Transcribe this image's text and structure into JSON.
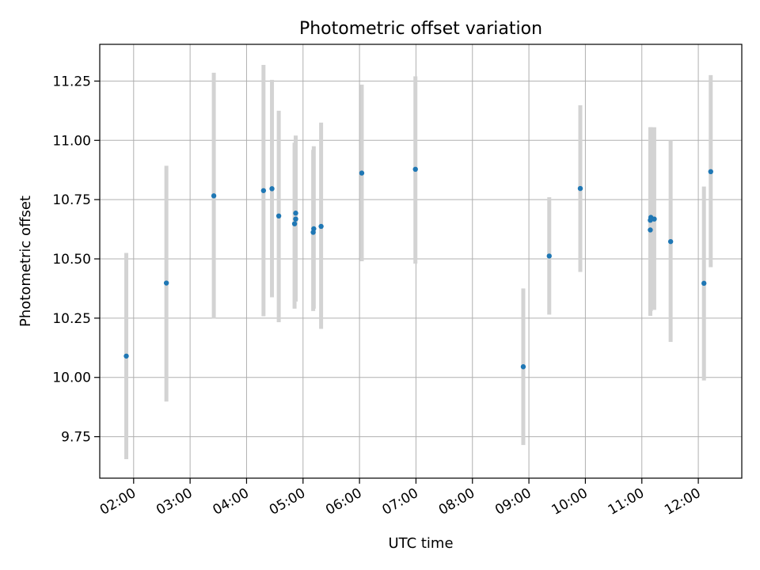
{
  "chart_data": {
    "type": "scatter",
    "title": "Photometric offset variation",
    "xlabel": "UTC time",
    "ylabel": "Photometric offset",
    "grid": true,
    "colors": {
      "point": "#1f77b4",
      "errorbar": "#d3d3d3",
      "grid": "#b0b0b0"
    },
    "x_unit": "hours UTC",
    "xlim": [
      1.4,
      12.77
    ],
    "ylim": [
      9.575,
      11.405
    ],
    "xticks": [
      {
        "value": 2,
        "label": "02:00"
      },
      {
        "value": 3,
        "label": "03:00"
      },
      {
        "value": 4,
        "label": "04:00"
      },
      {
        "value": 5,
        "label": "05:00"
      },
      {
        "value": 6,
        "label": "06:00"
      },
      {
        "value": 7,
        "label": "07:00"
      },
      {
        "value": 8,
        "label": "08:00"
      },
      {
        "value": 9,
        "label": "09:00"
      },
      {
        "value": 10,
        "label": "10:00"
      },
      {
        "value": 11,
        "label": "11:00"
      },
      {
        "value": 12,
        "label": "12:00"
      }
    ],
    "yticks": [
      {
        "value": 9.75,
        "label": "9.75"
      },
      {
        "value": 10.0,
        "label": "10.00"
      },
      {
        "value": 10.25,
        "label": "10.25"
      },
      {
        "value": 10.5,
        "label": "10.50"
      },
      {
        "value": 10.75,
        "label": "10.75"
      },
      {
        "value": 11.0,
        "label": "11.00"
      },
      {
        "value": 11.25,
        "label": "11.25"
      }
    ],
    "points": [
      {
        "t": 1.87,
        "y": 10.09,
        "lo": 9.655,
        "hi": 10.525
      },
      {
        "t": 2.58,
        "y": 10.398,
        "lo": 9.898,
        "hi": 10.893
      },
      {
        "t": 3.42,
        "y": 10.766,
        "lo": 10.248,
        "hi": 11.285
      },
      {
        "t": 4.3,
        "y": 10.788,
        "lo": 10.258,
        "hi": 11.318
      },
      {
        "t": 4.45,
        "y": 10.796,
        "lo": 10.338,
        "hi": 11.255
      },
      {
        "t": 4.57,
        "y": 10.681,
        "lo": 10.233,
        "hi": 11.125
      },
      {
        "t": 4.85,
        "y": 10.648,
        "lo": 10.29,
        "hi": 10.99
      },
      {
        "t": 4.87,
        "y": 10.668,
        "lo": 10.32,
        "hi": 11.02
      },
      {
        "t": 4.87,
        "y": 10.693,
        "lo": 10.33,
        "hi": 11.0
      },
      {
        "t": 5.18,
        "y": 10.612,
        "lo": 10.28,
        "hi": 10.96
      },
      {
        "t": 5.19,
        "y": 10.627,
        "lo": 10.29,
        "hi": 10.975
      },
      {
        "t": 5.32,
        "y": 10.637,
        "lo": 10.205,
        "hi": 11.075
      },
      {
        "t": 6.04,
        "y": 10.862,
        "lo": 10.49,
        "hi": 11.235
      },
      {
        "t": 6.99,
        "y": 10.878,
        "lo": 10.48,
        "hi": 11.27
      },
      {
        "t": 8.9,
        "y": 10.045,
        "lo": 9.715,
        "hi": 10.375
      },
      {
        "t": 9.36,
        "y": 10.512,
        "lo": 10.265,
        "hi": 10.76
      },
      {
        "t": 9.91,
        "y": 10.797,
        "lo": 10.445,
        "hi": 11.148
      },
      {
        "t": 11.15,
        "y": 10.622,
        "lo": 10.26,
        "hi": 10.99
      },
      {
        "t": 11.15,
        "y": 10.663,
        "lo": 10.26,
        "hi": 11.055
      },
      {
        "t": 11.16,
        "y": 10.675,
        "lo": 10.28,
        "hi": 11.055
      },
      {
        "t": 11.22,
        "y": 10.668,
        "lo": 10.285,
        "hi": 11.055
      },
      {
        "t": 11.51,
        "y": 10.573,
        "lo": 10.15,
        "hi": 11.0
      },
      {
        "t": 12.1,
        "y": 10.397,
        "lo": 9.987,
        "hi": 10.805
      },
      {
        "t": 12.22,
        "y": 10.868,
        "lo": 10.465,
        "hi": 11.275
      }
    ]
  }
}
